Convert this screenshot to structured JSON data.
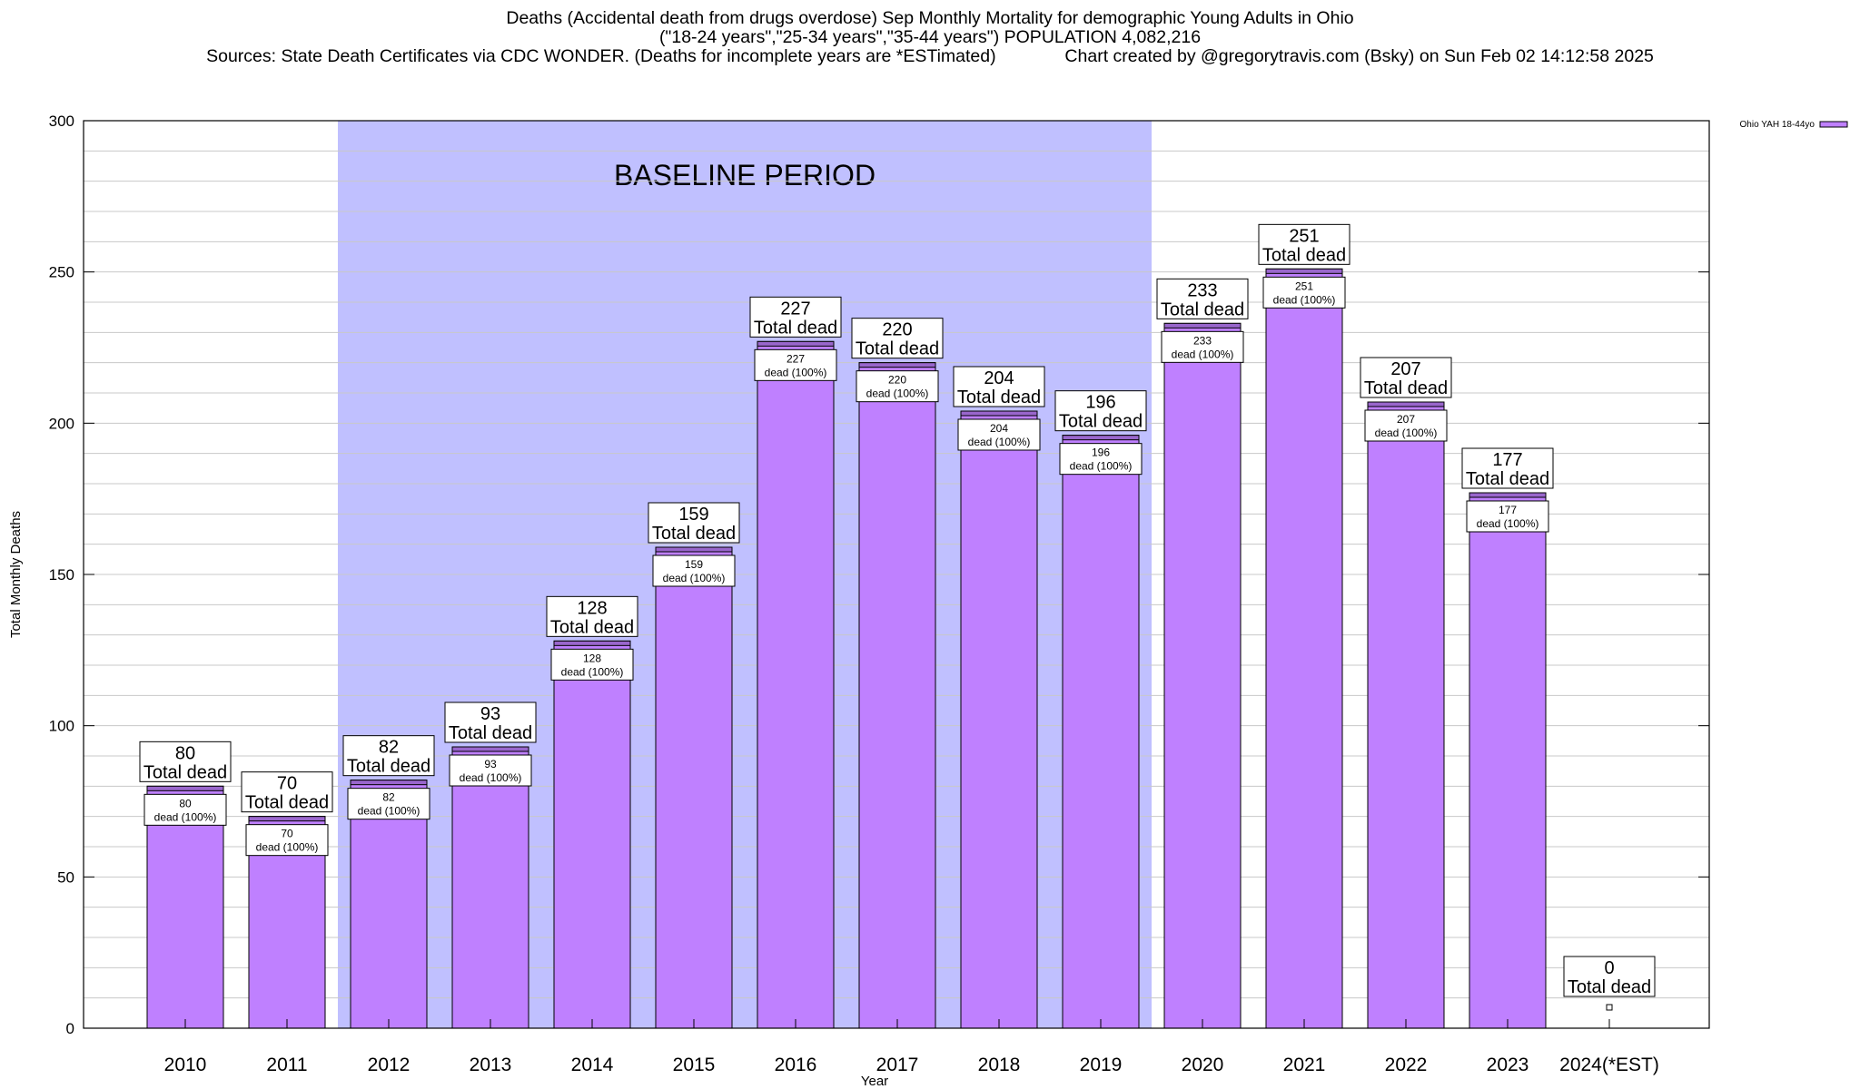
{
  "header": {
    "title_line1": "Deaths (Accidental death from drugs overdose) Sep Monthly Mortality for demographic Young Adults in Ohio",
    "title_line2": "(\"18-24 years\",\"25-34 years\",\"35-44 years\") POPULATION 4,082,216",
    "title_line3": "Sources: State Death Certificates via CDC WONDER. (Deaths for incomplete years are *ESTimated)              Chart created by @gregorytravis.com (Bsky) on Sun Feb 02 14:12:58 2025"
  },
  "chart_data": {
    "type": "bar",
    "categories": [
      "2010",
      "2011",
      "2012",
      "2013",
      "2014",
      "2015",
      "2016",
      "2017",
      "2018",
      "2019",
      "2020",
      "2021",
      "2022",
      "2023",
      "2024(*EST)"
    ],
    "series": [
      {
        "name": "Ohio YAH 18-44yo",
        "values": [
          80,
          70,
          82,
          93,
          128,
          159,
          227,
          220,
          204,
          196,
          233,
          251,
          207,
          177,
          0
        ]
      }
    ],
    "total_label": "Total dead",
    "inner_label_suffix": "dead (100%)",
    "ylim": [
      0,
      300
    ],
    "yticks": [
      0,
      50,
      100,
      150,
      200,
      250,
      300
    ],
    "xlabel": "Year",
    "ylabel": "Total Monthly Deaths",
    "grid": true,
    "legend_position": "top-right",
    "baseline": {
      "label": "BASELINE PERIOD",
      "from": "2012",
      "to": "2019"
    },
    "colors": {
      "bar": "#bf80ff",
      "bar_top": "#9966cc",
      "baseline": "#c0c0ff",
      "grid": "#c8c8c8",
      "legend_swatch": "#bf80ff"
    }
  }
}
